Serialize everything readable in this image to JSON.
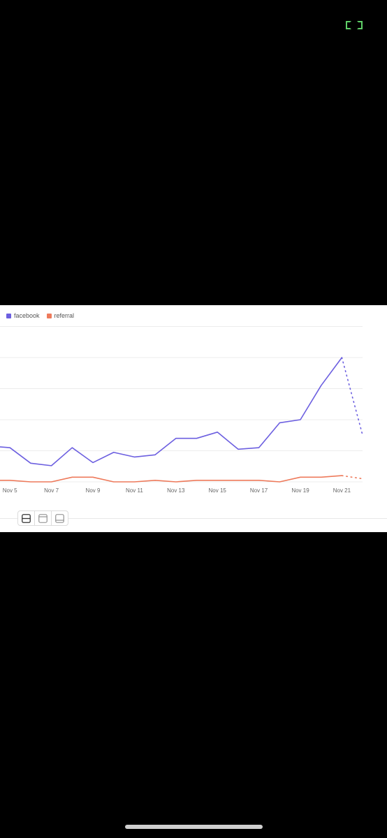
{
  "colors": {
    "facebook": "#6c5fe0",
    "referral": "#ee7a5b",
    "grid": "#ececec",
    "viewer_icon": "#5fd068"
  },
  "icons": {
    "viewer": "expand-corners-icon"
  },
  "layout_buttons": [
    "layout-split-icon",
    "layout-top-icon",
    "layout-bottom-icon"
  ],
  "chart_data": {
    "type": "line",
    "x": [
      "Nov 4",
      "Nov 5",
      "Nov 6",
      "Nov 7",
      "Nov 8",
      "Nov 9",
      "Nov 10",
      "Nov 11",
      "Nov 12",
      "Nov 13",
      "Nov 14",
      "Nov 15",
      "Nov 16",
      "Nov 17",
      "Nov 18",
      "Nov 19",
      "Nov 20",
      "Nov 21",
      "Nov 22"
    ],
    "tick_labels": [
      "Nov 5",
      "Nov 7",
      "Nov 9",
      "Nov 11",
      "Nov 13",
      "Nov 15",
      "Nov 17",
      "Nov 19",
      "Nov 21"
    ],
    "series": [
      {
        "name": "facebook",
        "values": [
          11.5,
          11,
          6,
          5.2,
          11,
          6.2,
          9.5,
          8,
          8.7,
          14,
          14,
          16,
          10.5,
          11,
          19,
          20,
          31,
          40,
          15
        ],
        "incomplete_last": true
      },
      {
        "name": "referral",
        "values": [
          0.5,
          0.5,
          0,
          0,
          1.5,
          1.5,
          0,
          0,
          0.5,
          0,
          0.5,
          0.5,
          0.5,
          0.5,
          0,
          1.5,
          1.5,
          2,
          1
        ],
        "incomplete_last": true
      }
    ],
    "ylim": [
      0,
      50
    ],
    "grid": true,
    "legend": "top-left"
  }
}
